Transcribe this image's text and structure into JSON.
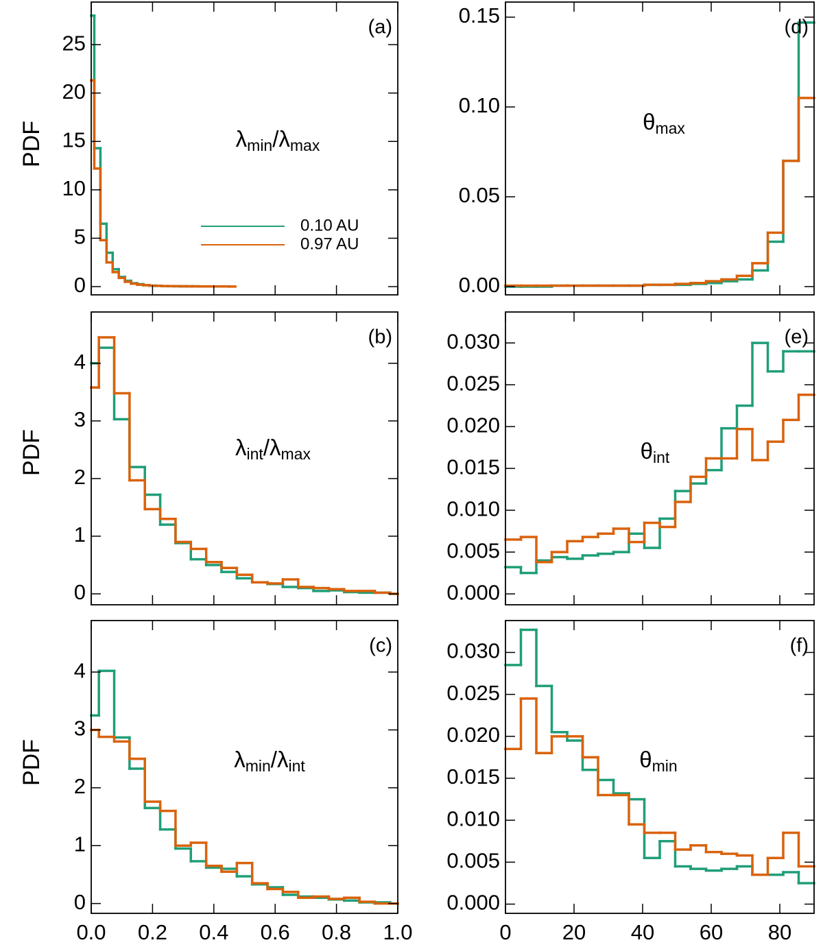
{
  "chart_data": [
    {
      "type": "histogram",
      "panel": "(a)",
      "ylabel": "PDF",
      "annotation": [
        "λ",
        "min",
        "/λ",
        "max"
      ],
      "bins": [
        0,
        0.01,
        0.03,
        0.05,
        0.07,
        0.09,
        0.11,
        0.13,
        0.15,
        0.17,
        0.19,
        0.21,
        0.23,
        0.25,
        0.27,
        0.29,
        0.31,
        0.33,
        0.35,
        0.37,
        0.39,
        0.41,
        0.43,
        0.45,
        0.47,
        0.49
      ],
      "series": [
        {
          "name": "0.10 AU",
          "color": "#1f9e78",
          "values": [
            28,
            14.3,
            6.5,
            3.5,
            1.8,
            1.0,
            0.6,
            0.35,
            0.25,
            0.15,
            0.1,
            0.08,
            0.05,
            0.05,
            0.04,
            0.03,
            0.03,
            0.03,
            null,
            null,
            null,
            null,
            null,
            null,
            null
          ]
        },
        {
          "name": "0.97 AU",
          "color": "#d9620c",
          "values": [
            21.3,
            12.2,
            4.8,
            2.5,
            1.5,
            0.9,
            0.5,
            0.3,
            0.2,
            0.15,
            0.1,
            0.08,
            0.06,
            0.05,
            0.05,
            0.04,
            0.03,
            0.03,
            0.02,
            0.02,
            0.02,
            0.02,
            0.02,
            0.01,
            null
          ]
        }
      ],
      "xlim": [
        0,
        1
      ],
      "xticks": [
        0,
        0.2,
        0.4,
        0.6,
        0.8,
        1
      ],
      "ylim": [
        -0.85,
        29.4
      ],
      "yticks": [
        0,
        5,
        10,
        15,
        20,
        25
      ],
      "legend": "inside-right"
    },
    {
      "type": "histogram",
      "panel": "(b)",
      "ylabel": "PDF",
      "annotation": [
        "λ",
        "int",
        "/λ",
        "max"
      ],
      "bins": [
        0,
        0.025,
        0.075,
        0.125,
        0.175,
        0.225,
        0.275,
        0.325,
        0.375,
        0.425,
        0.475,
        0.525,
        0.575,
        0.625,
        0.675,
        0.725,
        0.775,
        0.825,
        0.875,
        0.925,
        0.975,
        1
      ],
      "series": [
        {
          "color": "#1f9e78",
          "values": [
            4.0,
            4.27,
            3.03,
            2.2,
            1.72,
            1.2,
            0.88,
            0.6,
            0.5,
            0.38,
            0.27,
            0.2,
            0.17,
            0.12,
            0.1,
            0.05,
            0.06,
            0.03,
            0.02,
            0.02,
            0.0
          ]
        },
        {
          "color": "#d9620c",
          "values": [
            3.58,
            4.45,
            3.48,
            1.97,
            1.47,
            1.3,
            0.9,
            0.78,
            0.55,
            0.45,
            0.33,
            0.2,
            0.18,
            0.25,
            0.12,
            0.1,
            0.08,
            0.05,
            0.05,
            0.02,
            0.0
          ]
        }
      ],
      "xlim": [
        0,
        1
      ],
      "xticks": [
        0,
        0.2,
        0.4,
        0.6,
        0.8,
        1
      ],
      "ylim": [
        -0.19,
        4.89
      ],
      "yticks": [
        0,
        1,
        2,
        3,
        4
      ]
    },
    {
      "type": "histogram",
      "panel": "(c)",
      "ylabel": "PDF",
      "annotation": [
        "λ",
        "min",
        "/λ",
        "int"
      ],
      "bins": [
        0,
        0.025,
        0.075,
        0.125,
        0.175,
        0.225,
        0.275,
        0.325,
        0.375,
        0.425,
        0.475,
        0.525,
        0.575,
        0.625,
        0.675,
        0.725,
        0.775,
        0.825,
        0.875,
        0.925,
        0.975,
        1
      ],
      "series": [
        {
          "color": "#1f9e78",
          "values": [
            3.25,
            4.02,
            2.87,
            2.33,
            1.65,
            1.28,
            0.95,
            0.73,
            0.62,
            0.6,
            0.47,
            0.33,
            0.28,
            0.15,
            0.12,
            0.1,
            0.07,
            0.05,
            0.02,
            0.02,
            0.0
          ]
        },
        {
          "color": "#d9620c",
          "values": [
            3.0,
            2.88,
            2.8,
            2.5,
            1.76,
            1.6,
            1.0,
            1.05,
            0.65,
            0.55,
            0.7,
            0.35,
            0.25,
            0.2,
            0.1,
            0.12,
            0.08,
            0.1,
            0.03,
            0.0,
            0.0
          ]
        }
      ],
      "xlim": [
        0,
        1
      ],
      "xticks": [
        {
          "value": 0,
          "label": "0.0"
        },
        {
          "value": 0.2,
          "label": "0.2"
        },
        {
          "value": 0.4,
          "label": "0.4"
        },
        {
          "value": 0.6,
          "label": "0.6"
        },
        {
          "value": 0.8,
          "label": "0.8"
        },
        {
          "value": 1,
          "label": "1.0"
        }
      ],
      "ylim": [
        -0.17,
        4.89
      ],
      "yticks": [
        0,
        1,
        2,
        3,
        4
      ]
    },
    {
      "type": "histogram",
      "panel": "(d)",
      "annotation": [
        "θ",
        "max"
      ],
      "bins": [
        0,
        4.5,
        9,
        13.5,
        18,
        22.5,
        27,
        31.5,
        36,
        40.5,
        45,
        49.5,
        54,
        58.5,
        63,
        67.5,
        72,
        76.5,
        81,
        85.5,
        90
      ],
      "series": [
        {
          "color": "#1f9e78",
          "values": [
            0,
            0,
            0,
            0.0005,
            0.0005,
            0.0005,
            0.0005,
            0.0005,
            0.0005,
            0.001,
            0.001,
            0.001,
            0.0015,
            0.002,
            0.003,
            0.004,
            0.009,
            0.025,
            0.07,
            0.147
          ]
        },
        {
          "color": "#d9620c",
          "values": [
            0.0005,
            0.0005,
            0.0005,
            0.0005,
            0.0005,
            0.0005,
            0.0005,
            0.0005,
            0.0005,
            0.001,
            0.001,
            0.0015,
            0.002,
            0.003,
            0.004,
            0.006,
            0.013,
            0.03,
            0.07,
            0.105
          ]
        }
      ],
      "xlim": [
        0,
        90
      ],
      "xticks": [
        0,
        20,
        40,
        60,
        80
      ],
      "ylim": [
        -0.0046,
        0.1584
      ],
      "yticks": [
        {
          "value": 0,
          "label": "0.00"
        },
        {
          "value": 0.05,
          "label": "0.05"
        },
        {
          "value": 0.1,
          "label": "0.10"
        },
        {
          "value": 0.15,
          "label": "0.15"
        }
      ]
    },
    {
      "type": "histogram",
      "panel": "(e)",
      "annotation": [
        "θ",
        "int"
      ],
      "bins": [
        0,
        4.5,
        9,
        13.5,
        18,
        22.5,
        27,
        31.5,
        36,
        40.5,
        45,
        49.5,
        54,
        58.5,
        63,
        67.5,
        72,
        76.5,
        81,
        85.5,
        90
      ],
      "series": [
        {
          "color": "#1f9e78",
          "values": [
            0.0032,
            0.0025,
            0.004,
            0.0044,
            0.0042,
            0.0046,
            0.0048,
            0.005,
            0.0072,
            0.0055,
            0.009,
            0.0123,
            0.0132,
            0.0148,
            0.0198,
            0.0225,
            0.03,
            0.0266,
            0.029,
            0.029
          ]
        },
        {
          "color": "#d9620c",
          "values": [
            0.0065,
            0.0068,
            0.0038,
            0.005,
            0.0063,
            0.0068,
            0.0072,
            0.0078,
            0.0062,
            0.0085,
            0.008,
            0.011,
            0.014,
            0.0162,
            0.0162,
            0.0197,
            0.016,
            0.0182,
            0.0208,
            0.0238
          ]
        }
      ],
      "xlim": [
        0,
        90
      ],
      "xticks": [
        0,
        20,
        40,
        60,
        80
      ],
      "ylim": [
        -0.0013,
        0.0337
      ],
      "yticks": [
        {
          "value": 0,
          "label": "0.000"
        },
        {
          "value": 0.005,
          "label": "0.005"
        },
        {
          "value": 0.01,
          "label": "0.010"
        },
        {
          "value": 0.015,
          "label": "0.015"
        },
        {
          "value": 0.02,
          "label": "0.020"
        },
        {
          "value": 0.025,
          "label": "0.025"
        },
        {
          "value": 0.03,
          "label": "0.030"
        }
      ]
    },
    {
      "type": "histogram",
      "panel": "(f)",
      "annotation": [
        "θ",
        "min"
      ],
      "bins": [
        0,
        4.5,
        9,
        13.5,
        18,
        22.5,
        27,
        31.5,
        36,
        40.5,
        45,
        49.5,
        54,
        58.5,
        63,
        67.5,
        72,
        76.5,
        81,
        85.5,
        90
      ],
      "series": [
        {
          "color": "#1f9e78",
          "values": [
            0.0285,
            0.0327,
            0.026,
            0.0205,
            0.0195,
            0.016,
            0.0148,
            0.0132,
            0.0125,
            0.0055,
            0.0075,
            0.0045,
            0.0042,
            0.004,
            0.0042,
            0.0045,
            0.0035,
            0.0035,
            0.0038,
            0.0025
          ]
        },
        {
          "color": "#d9620c",
          "values": [
            0.0185,
            0.0245,
            0.018,
            0.02,
            0.02,
            0.0175,
            0.013,
            0.013,
            0.0095,
            0.0085,
            0.0085,
            0.0065,
            0.007,
            0.0062,
            0.006,
            0.0058,
            0.0035,
            0.0055,
            0.0085,
            0.0045
          ]
        }
      ],
      "xlim": [
        0,
        90
      ],
      "xticks": [
        0,
        20,
        40,
        60,
        80
      ],
      "ylim": [
        -0.0011,
        0.0338
      ],
      "yticks": [
        {
          "value": 0,
          "label": "0.000"
        },
        {
          "value": 0.005,
          "label": "0.005"
        },
        {
          "value": 0.01,
          "label": "0.010"
        },
        {
          "value": 0.015,
          "label": "0.015"
        },
        {
          "value": 0.02,
          "label": "0.020"
        },
        {
          "value": 0.025,
          "label": "0.025"
        },
        {
          "value": 0.03,
          "label": "0.030"
        }
      ]
    }
  ]
}
